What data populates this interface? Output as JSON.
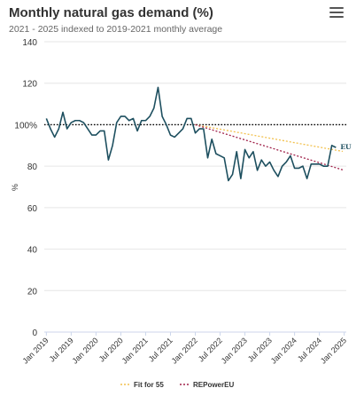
{
  "header": {
    "title": "Monthly natural gas demand (%)",
    "subtitle": "2021 - 2025 indexed to 2019-2021 monthly average",
    "menu_icon": "hamburger-menu-icon"
  },
  "colors": {
    "series": "#1d4f5f",
    "fit_for_55": "#f2c14e",
    "repowereu": "#a0224a",
    "baseline": "#000000",
    "grid": "#e6e6e6"
  },
  "chart_data": {
    "type": "line",
    "title": "Monthly natural gas demand (%)",
    "subtitle": "2021 - 2025 indexed to 2019-2021 monthly average",
    "ylabel": "%",
    "xlabel": "",
    "ylim": [
      0,
      140
    ],
    "yticks": [
      0,
      20,
      40,
      60,
      80,
      100,
      120,
      140
    ],
    "ytick_labels": [
      "0",
      "20",
      "40",
      "60",
      "80",
      "100%",
      "120",
      "140"
    ],
    "xticks": [
      "Jan 2019",
      "Jul 2019",
      "Jan 2020",
      "Jul 2020",
      "Jan 2021",
      "Jul 2021",
      "Jan 2022",
      "Jul 2022",
      "Jan 2023",
      "Jul 2023",
      "Jan 2024",
      "Jul 2024",
      "Jan 2025"
    ],
    "grid": true,
    "baseline": 100,
    "series": [
      {
        "name": "EU",
        "start": "Jan 2019",
        "values": [
          103,
          98,
          94,
          98,
          106,
          98,
          101,
          102,
          102,
          101,
          98,
          95,
          95,
          97,
          97,
          83,
          90,
          101,
          104,
          104,
          102,
          103,
          97,
          102,
          102,
          104,
          108,
          118,
          104,
          100,
          95,
          94,
          96,
          98,
          103,
          103,
          96,
          98,
          98,
          84,
          93,
          86,
          85,
          84,
          73,
          76,
          87,
          74,
          88,
          84,
          87,
          78,
          83,
          80,
          82,
          78,
          75,
          80,
          82,
          85,
          79,
          79,
          80,
          74,
          81,
          81,
          81,
          80,
          80,
          90,
          89
        ]
      }
    ],
    "targets": [
      {
        "name": "Fit for 55",
        "from": {
          "x": "Jan 2022",
          "y": 100
        },
        "to": {
          "x": "Jan 2025",
          "y": 87
        }
      },
      {
        "name": "REPowerEU",
        "from": {
          "x": "Jan 2022",
          "y": 100
        },
        "to": {
          "x": "Jan 2025",
          "y": 78
        }
      }
    ],
    "legend": [
      "Fit for 55",
      "REPowerEU"
    ],
    "legend_position": "bottom-center"
  }
}
